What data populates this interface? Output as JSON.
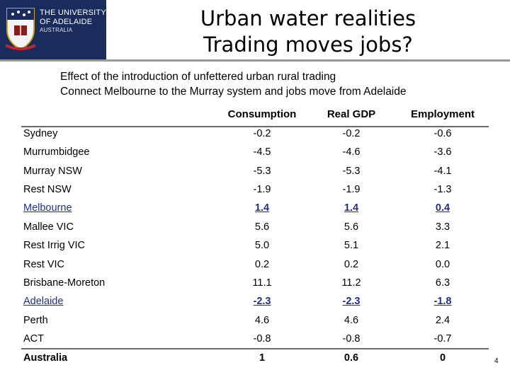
{
  "logo": {
    "line1": "THE UNIVERSITY",
    "line2": "OF ADELAIDE",
    "line3": "AUSTRALIA"
  },
  "title": {
    "line1": "Urban water realities",
    "line2": "Trading moves jobs?"
  },
  "subtitle": {
    "line1": "Effect of the introduction of unfettered urban rural trading",
    "line2": "Connect Melbourne to the Murray system and jobs move from Adelaide"
  },
  "table": {
    "columns": [
      "Consumption",
      "Real GDP",
      "Employment"
    ],
    "rows": [
      {
        "region": "Sydney",
        "values": [
          "-0.2",
          "-0.2",
          "-0.6"
        ]
      },
      {
        "region": "Murrumbidgee",
        "values": [
          "-4.5",
          "-4.6",
          "-3.6"
        ]
      },
      {
        "region": "Murray NSW",
        "values": [
          "-5.3",
          "-5.3",
          "-4.1"
        ]
      },
      {
        "region": "Rest NSW",
        "values": [
          "-1.9",
          "-1.9",
          "-1.3"
        ]
      },
      {
        "region": "Melbourne",
        "values": [
          "1.4",
          "1.4",
          "0.4"
        ]
      },
      {
        "region": "Mallee VIC",
        "values": [
          "5.6",
          "5.6",
          "3.3"
        ]
      },
      {
        "region": "Rest Irrig VIC",
        "values": [
          "5.0",
          "5.1",
          "2.1"
        ]
      },
      {
        "region": "Rest VIC",
        "values": [
          "0.2",
          "0.2",
          "0.0"
        ]
      },
      {
        "region": "Brisbane-Moreton",
        "values": [
          "11.1",
          "11.2",
          "6.3"
        ]
      },
      {
        "region": "Adelaide",
        "values": [
          "-2.3",
          "-2.3",
          "-1.8"
        ]
      },
      {
        "region": "Perth",
        "values": [
          "4.6",
          "4.6",
          "2.4"
        ]
      },
      {
        "region": "ACT",
        "values": [
          "-0.8",
          "-0.8",
          "-0.7"
        ]
      },
      {
        "region": "Australia",
        "values": [
          "1",
          "0.6",
          "0"
        ]
      }
    ]
  },
  "page_number": "4",
  "colors": {
    "logo_background": "#1a2c5b",
    "highlight_link": "#1f2f8f",
    "rule": "#6a6a6a"
  }
}
